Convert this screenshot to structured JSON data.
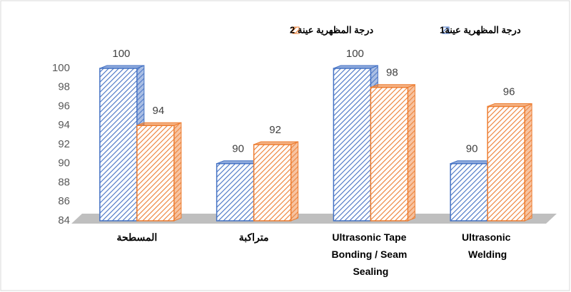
{
  "chart_data": {
    "type": "bar3d",
    "categories": [
      "المسطحة",
      "متراكبة",
      "Ultrasonic Tape Bonding / Seam Sealing",
      "Ultrasonic Welding"
    ],
    "series": [
      {
        "name": "درجة المظهرية  عينة1",
        "color": "#4472c4",
        "values": [
          100,
          90,
          100,
          90
        ]
      },
      {
        "name": "درجة المظهرية  عينة 2",
        "color": "#ed7d31",
        "values": [
          94,
          92,
          98,
          96
        ]
      }
    ],
    "ylim": [
      84,
      100
    ],
    "yticks": [
      84,
      86,
      88,
      90,
      92,
      94,
      96,
      98,
      100
    ],
    "data_labels": true,
    "legend": "top"
  }
}
